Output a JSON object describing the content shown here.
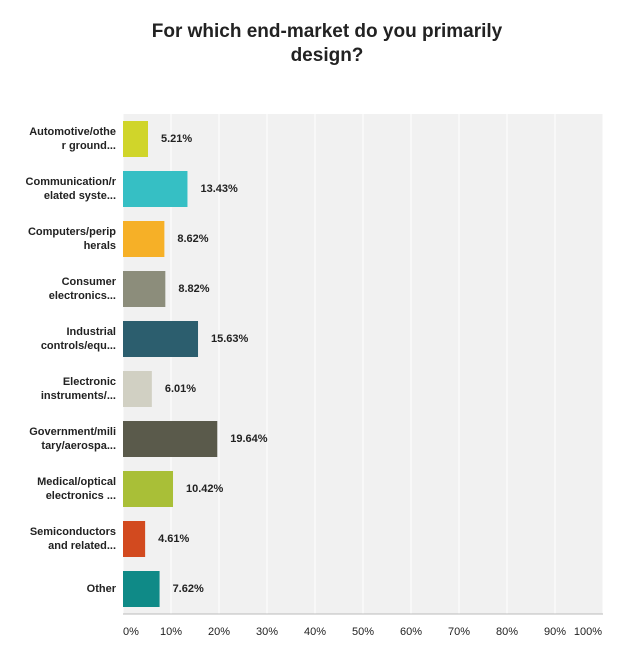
{
  "chart_data": {
    "type": "bar",
    "orientation": "horizontal",
    "title": "For which end-market do you primarily design?",
    "categories": [
      "Automotive/othe\nr ground...",
      "Communication/r\nelated syste...",
      "Computers/perip\nherals",
      "Consumer\nelectronics...",
      "Industrial\ncontrols/equ...",
      "Electronic\ninstruments/...",
      "Government/mili\ntary/aerospa...",
      "Medical/optical\nelectronics ...",
      "Semiconductors\nand related...",
      "Other"
    ],
    "values": [
      5.21,
      13.43,
      8.62,
      8.82,
      15.63,
      6.01,
      19.64,
      10.42,
      4.61,
      7.62
    ],
    "value_labels": [
      "5.21%",
      "13.43%",
      "8.62%",
      "8.82%",
      "15.63%",
      "6.01%",
      "19.64%",
      "10.42%",
      "4.61%",
      "7.62%"
    ],
    "colors": [
      "#d0d52a",
      "#36bfc4",
      "#f6b027",
      "#8c8d7b",
      "#2c5e6e",
      "#d1d0c3",
      "#5a5a4b",
      "#a9bf37",
      "#d24a1f",
      "#0f8a87"
    ],
    "xlim": [
      0,
      100
    ],
    "xticks": [
      {
        "value": 0,
        "label": "0%"
      },
      {
        "value": 10,
        "label": "10%"
      },
      {
        "value": 20,
        "label": "20%"
      },
      {
        "value": 30,
        "label": "30%"
      },
      {
        "value": 40,
        "label": "40%"
      },
      {
        "value": 50,
        "label": "50%"
      },
      {
        "value": 60,
        "label": "60%"
      },
      {
        "value": 70,
        "label": "70%"
      },
      {
        "value": 80,
        "label": "80%"
      },
      {
        "value": 90,
        "label": "90%"
      },
      {
        "value": 100,
        "label": "100%"
      }
    ],
    "grid": true
  }
}
